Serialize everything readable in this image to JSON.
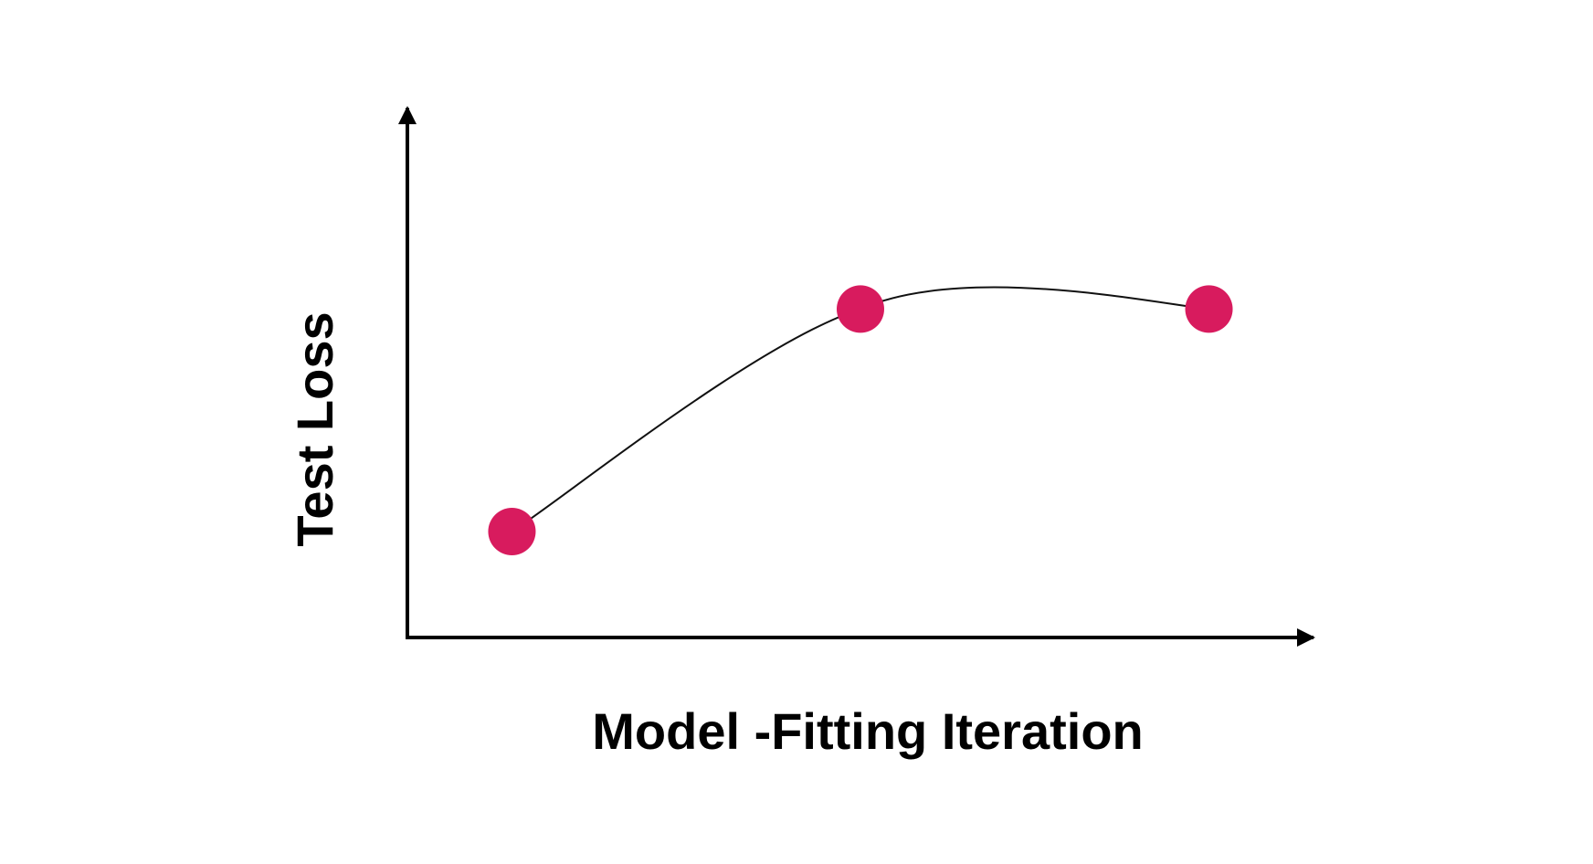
{
  "chart_data": {
    "type": "line",
    "title": "",
    "xlabel": "Model -Fitting Iteration",
    "ylabel": "Test Loss",
    "axis_ticks": false,
    "grid": false,
    "legend": "none",
    "series": [
      {
        "x": [
          1,
          2,
          3
        ],
        "y": [
          0.2,
          0.62,
          0.62
        ],
        "smooth": true
      }
    ],
    "ylim": [
      0,
      1
    ],
    "xlim": [
      0.7,
      3.3
    ],
    "colors": {
      "point": "#d81b5e",
      "line": "#111111",
      "axis": "#000000"
    }
  }
}
